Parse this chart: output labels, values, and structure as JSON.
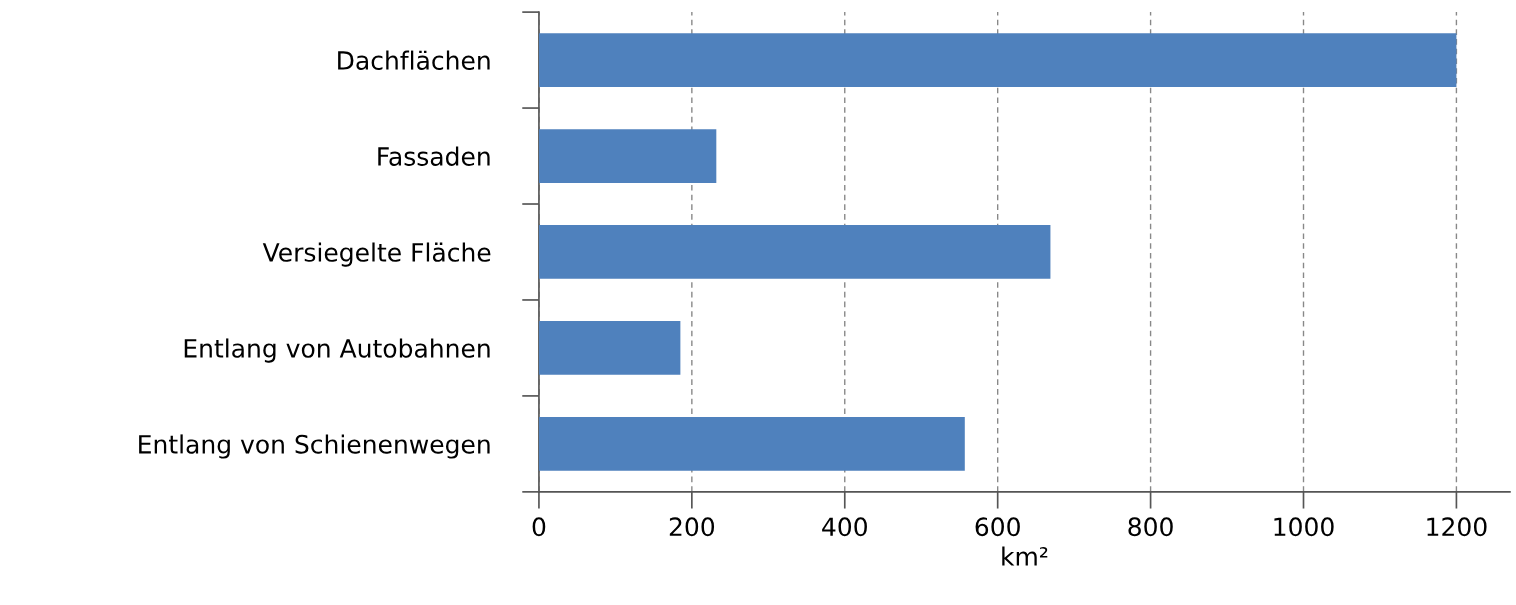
{
  "chart_data": {
    "type": "bar",
    "orientation": "horizontal",
    "xlabel": "km²",
    "categories": [
      "Dachflächen",
      "Fassaden",
      "Versiegelte Fläche",
      "Entlang von Autobahnen",
      "Entlang von Schienenwegen"
    ],
    "values": [
      1200,
      232,
      669,
      185,
      557
    ],
    "color": "#4f81bd",
    "xlim": [
      0,
      1270
    ],
    "xticks": [
      0,
      200,
      400,
      600,
      800,
      1000,
      1200
    ],
    "grid": "x",
    "legend": false
  }
}
